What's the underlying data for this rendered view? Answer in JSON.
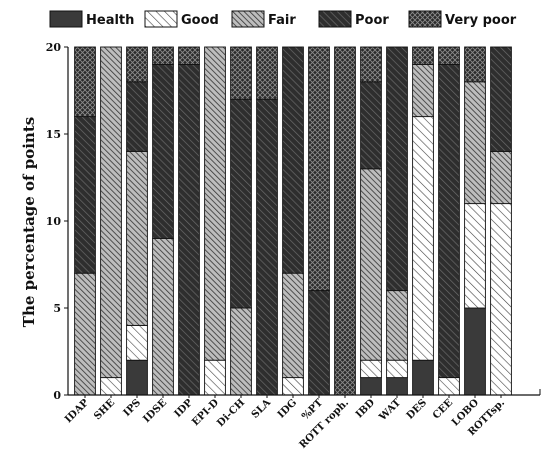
{
  "chart_data": {
    "type": "bar",
    "stacked": true,
    "ylabel": "The percentage of points",
    "xlabel": "",
    "ylim": [
      0,
      20
    ],
    "yticks": [
      0,
      5,
      10,
      15,
      20
    ],
    "legend_position": "top",
    "categories": [
      "IDAP",
      "SHE",
      "IPS",
      "IDSE",
      "IDP",
      "EPI-D",
      "Di-CH",
      "SLA",
      "IDG",
      "%PT",
      "ROTT roph.",
      "IBD",
      "WAT",
      "DES",
      "CEE",
      "LOBO",
      "ROTTsp."
    ],
    "series": [
      {
        "name": "Health",
        "pattern": "solid",
        "color": "#3a3a3a",
        "values": [
          0,
          0,
          2,
          0,
          0,
          0,
          0,
          0,
          0,
          0,
          0,
          1,
          1,
          2,
          0,
          5,
          0
        ]
      },
      {
        "name": "Good",
        "pattern": "light-diagonal",
        "color": "#ffffff",
        "values": [
          0,
          1,
          2,
          0,
          0,
          2,
          0,
          0,
          1,
          0,
          0,
          1,
          1,
          14,
          1,
          6,
          11
        ]
      },
      {
        "name": "Fair",
        "pattern": "grey-diagonal",
        "color": "#9a9a9a",
        "values": [
          7,
          19,
          10,
          9,
          0,
          18,
          5,
          0,
          6,
          0,
          0,
          11,
          4,
          3,
          0,
          7,
          3
        ]
      },
      {
        "name": "Poor",
        "pattern": "dark-diagonal",
        "color": "#444444",
        "values": [
          9,
          0,
          4,
          10,
          19,
          0,
          12,
          17,
          13,
          6,
          0,
          5,
          14,
          0,
          18,
          0,
          6
        ]
      },
      {
        "name": "Very poor",
        "pattern": "crosshatch",
        "color": "#555555",
        "values": [
          4,
          0,
          2,
          1,
          1,
          0,
          3,
          3,
          0,
          14,
          20,
          2,
          0,
          1,
          1,
          2,
          0
        ]
      }
    ]
  }
}
